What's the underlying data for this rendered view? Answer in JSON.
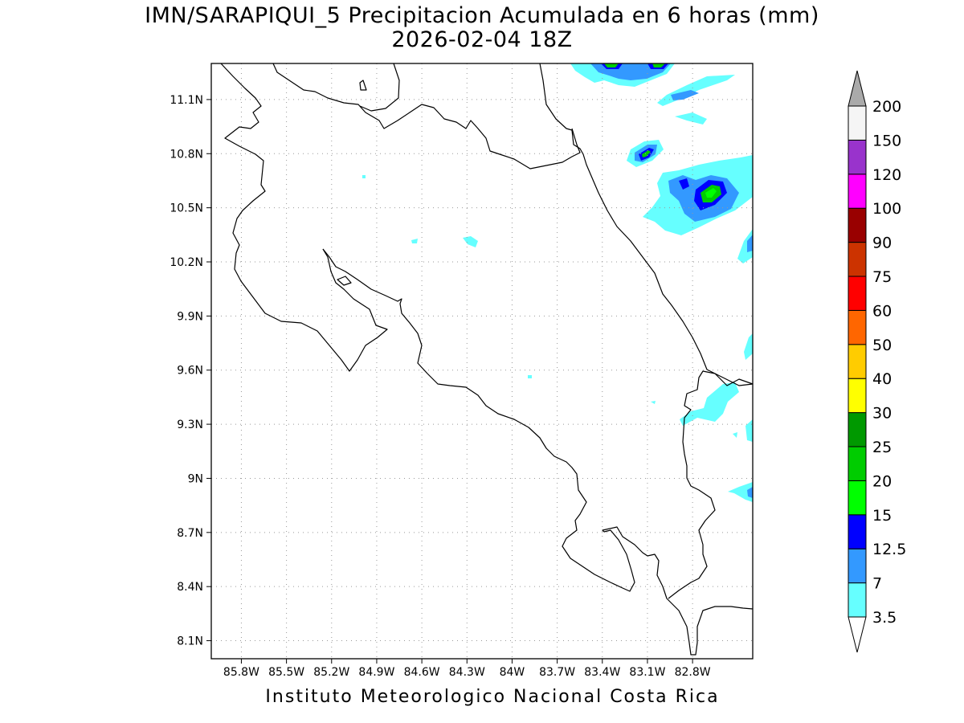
{
  "title": {
    "line1": "IMN/SARAPIQUI_5 Precipitacion Acumulada en 6 horas (mm)",
    "line2": "2026-02-04 18Z"
  },
  "footer": "Instituto Meteorologico Nacional Costa Rica",
  "map": {
    "lon_range": [
      -86.0,
      -82.4
    ],
    "lat_range": [
      8.0,
      11.3
    ],
    "lon_ticks": [
      {
        "value": -85.8,
        "label": "85.8W"
      },
      {
        "value": -85.5,
        "label": "85.5W"
      },
      {
        "value": -85.2,
        "label": "85.2W"
      },
      {
        "value": -84.9,
        "label": "84.9W"
      },
      {
        "value": -84.6,
        "label": "84.6W"
      },
      {
        "value": -84.3,
        "label": "84.3W"
      },
      {
        "value": -84.0,
        "label": "84W"
      },
      {
        "value": -83.7,
        "label": "83.7W"
      },
      {
        "value": -83.4,
        "label": "83.4W"
      },
      {
        "value": -83.1,
        "label": "83.1W"
      },
      {
        "value": -82.8,
        "label": "82.8W"
      }
    ],
    "lat_ticks": [
      {
        "value": 8.1,
        "label": "8.1N"
      },
      {
        "value": 8.4,
        "label": "8.4N"
      },
      {
        "value": 8.7,
        "label": "8.7N"
      },
      {
        "value": 9.0,
        "label": "9N"
      },
      {
        "value": 9.3,
        "label": "9.3N"
      },
      {
        "value": 9.6,
        "label": "9.6N"
      },
      {
        "value": 9.9,
        "label": "9.9N"
      },
      {
        "value": 10.2,
        "label": "10.2N"
      },
      {
        "value": 10.5,
        "label": "10.5N"
      },
      {
        "value": 10.8,
        "label": "10.8N"
      },
      {
        "value": 11.1,
        "label": "11.1N"
      }
    ],
    "grid": true
  },
  "legend": {
    "labels": [
      "3.5",
      "7",
      "12.5",
      "15",
      "20",
      "25",
      "30",
      "40",
      "50",
      "60",
      "75",
      "90",
      "100",
      "120",
      "150",
      "200"
    ],
    "colors": [
      "#66ffff",
      "#3399ff",
      "#0000ff",
      "#00ff00",
      "#00cc00",
      "#009900",
      "#ffff00",
      "#ffcc00",
      "#ff6600",
      "#ff0000",
      "#cc3300",
      "#990000",
      "#ff00ff",
      "#9933cc",
      "#f5f5f5"
    ],
    "below_color": "#ffffff",
    "above_color": "#aaaaaa"
  }
}
